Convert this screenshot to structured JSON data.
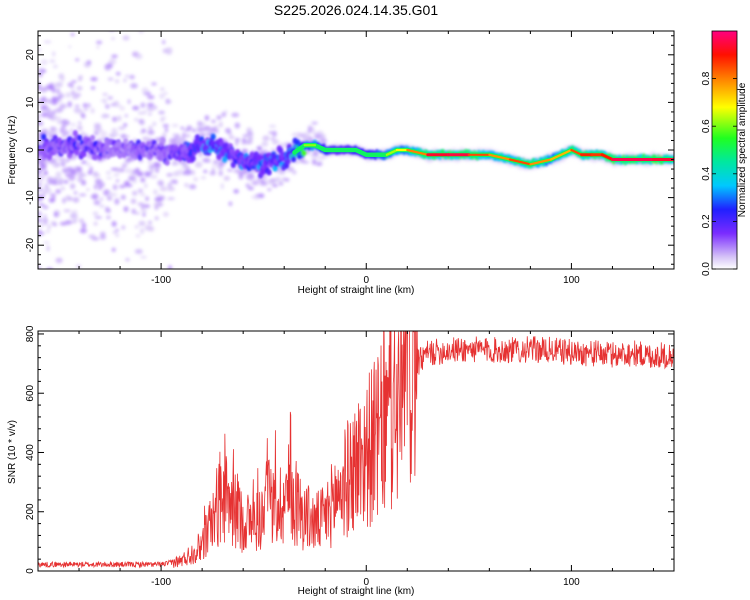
{
  "title": "S225.2026.024.14.35.G01",
  "chart_data": [
    {
      "type": "heatmap",
      "xlabel": "Height of straight line (km)",
      "ylabel": "Frequency (Hz)",
      "xlim": [
        -160,
        150
      ],
      "ylim": [
        -25,
        25
      ],
      "x_ticks": [
        -100,
        0,
        100
      ],
      "x_tick_labels": [
        "-100",
        "0",
        "100"
      ],
      "y_ticks": [
        20,
        10,
        0,
        -10,
        -20
      ],
      "y_tick_labels": [
        "20",
        "10",
        "0",
        "-10",
        "-20"
      ],
      "colorbar": {
        "label": "Normalized spectral amplitude",
        "range": [
          0,
          1
        ],
        "ticks": [
          0.0,
          0.2,
          0.4,
          0.6,
          0.8
        ],
        "tick_labels": [
          "0.0",
          "0.2",
          "0.4",
          "0.6",
          "0.8"
        ]
      },
      "ridge": {
        "x": [
          -160,
          -140,
          -120,
          -100,
          -90,
          -80,
          -75,
          -70,
          -60,
          -50,
          -40,
          -30,
          -25,
          -20,
          -15,
          -10,
          -5,
          0,
          5,
          10,
          15,
          20,
          30,
          40,
          50,
          60,
          70,
          80,
          90,
          100,
          105,
          110,
          115,
          120,
          130,
          140,
          150
        ],
        "freq": [
          0,
          1,
          0,
          0,
          -1,
          1,
          1,
          0,
          -2,
          -3,
          -2,
          1,
          1,
          0,
          0,
          0,
          0,
          -1,
          -1,
          -1,
          0,
          0,
          -1,
          -1,
          -1,
          -1,
          -2,
          -3,
          -2,
          0,
          -1,
          -1,
          -1,
          -2,
          -2,
          -2,
          -2
        ],
        "amplitude": [
          0.22,
          0.24,
          0.2,
          0.2,
          0.25,
          0.33,
          0.36,
          0.3,
          0.3,
          0.32,
          0.32,
          0.55,
          0.58,
          0.45,
          0.42,
          0.4,
          0.42,
          0.45,
          0.5,
          0.55,
          0.6,
          0.65,
          0.85,
          0.92,
          0.88,
          0.72,
          0.75,
          0.85,
          0.62,
          0.78,
          0.82,
          0.85,
          0.78,
          0.9,
          0.92,
          0.9,
          0.88
        ]
      }
    },
    {
      "type": "line",
      "xlabel": "Height of straight line (km)",
      "ylabel": "SNR (10 * v/v)",
      "xlim": [
        -160,
        150
      ],
      "ylim": [
        0,
        810
      ],
      "x_ticks": [
        -100,
        0,
        100
      ],
      "x_tick_labels": [
        "-100",
        "0",
        "100"
      ],
      "y_ticks": [
        0,
        200,
        400,
        600,
        800
      ],
      "y_tick_labels": [
        "0",
        "200",
        "400",
        "600",
        "800"
      ],
      "color": "#e63232",
      "series": [
        {
          "name": "SNR envelope",
          "x": [
            -160,
            -120,
            -100,
            -95,
            -90,
            -85,
            -80,
            -75,
            -72,
            -70,
            -65,
            -60,
            -55,
            -50,
            -45,
            -40,
            -38,
            -35,
            -30,
            -25,
            -20,
            -15,
            -10,
            -5,
            0,
            5,
            10,
            15,
            20,
            25,
            30,
            40,
            50,
            60,
            70,
            80,
            90,
            100,
            110,
            120,
            130,
            140,
            150
          ],
          "y": [
            22,
            22,
            22,
            28,
            35,
            60,
            90,
            170,
            230,
            250,
            210,
            170,
            160,
            190,
            210,
            240,
            270,
            230,
            190,
            160,
            180,
            250,
            300,
            360,
            400,
            440,
            490,
            560,
            650,
            700,
            735,
            745,
            748,
            745,
            745,
            748,
            745,
            738,
            735,
            730,
            735,
            725,
            730
          ]
        }
      ]
    }
  ]
}
